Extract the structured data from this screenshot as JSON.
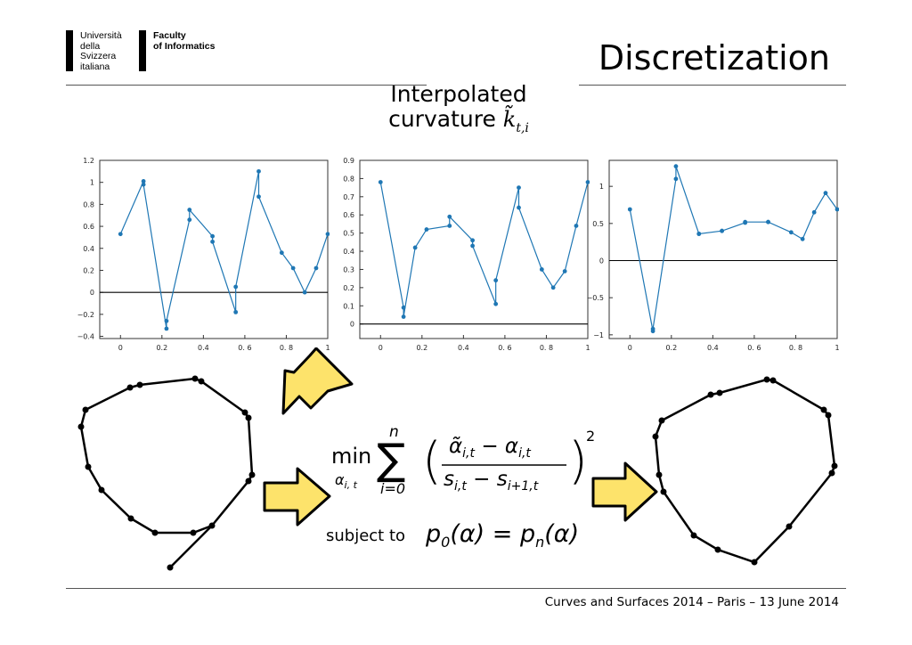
{
  "header": {
    "logo_university": "Università\ndella\nSvizzera\nitaliana",
    "logo_faculty": "Faculty\nof Informatics",
    "title": "Discretization"
  },
  "subtitle": {
    "line1": "Interpolated",
    "line2": "curvature"
  },
  "formula": {
    "min_label": "min",
    "constraint_prefix": "subject to",
    "exponent": "2",
    "upper": "n",
    "lower": "i=0"
  },
  "footer": "Curves and Surfaces 2014 – Paris – 13 June 2014",
  "colors": {
    "series": "#1f77b4",
    "arrow_fill": "#fde36b",
    "arrow_stroke": "#000000"
  },
  "chart_data": [
    {
      "type": "line",
      "x": [
        0.0,
        0.111,
        0.111,
        0.222,
        0.222,
        0.333,
        0.333,
        0.444,
        0.444,
        0.556,
        0.556,
        0.667,
        0.667,
        0.778,
        0.833,
        0.889,
        0.944,
        1.0
      ],
      "y": [
        0.53,
        1.01,
        0.98,
        -0.33,
        -0.26,
        0.66,
        0.75,
        0.51,
        0.46,
        -0.18,
        0.05,
        1.1,
        0.87,
        0.36,
        0.22,
        0.0,
        0.22,
        0.53
      ],
      "xlim": [
        -0.1,
        1.0
      ],
      "ylim": [
        -0.42,
        1.2
      ],
      "xticks": [
        "0",
        "0.2",
        "0.4",
        "0. 6",
        "0. 8",
        "1"
      ],
      "yticks": [
        "−0.4",
        "−0.2",
        "0",
        "0.2",
        "0.4",
        "0.6",
        "0.8",
        "1",
        "1.2"
      ],
      "zero_line": true
    },
    {
      "type": "line",
      "x": [
        0.0,
        0.111,
        0.111,
        0.167,
        0.222,
        0.333,
        0.333,
        0.444,
        0.444,
        0.556,
        0.556,
        0.667,
        0.667,
        0.778,
        0.833,
        0.889,
        0.944,
        1.0
      ],
      "y": [
        0.78,
        0.09,
        0.04,
        0.42,
        0.52,
        0.54,
        0.59,
        0.46,
        0.43,
        0.11,
        0.24,
        0.75,
        0.64,
        0.3,
        0.2,
        0.29,
        0.54,
        0.78
      ],
      "xlim": [
        -0.1,
        1.0
      ],
      "ylim": [
        -0.08,
        0.9
      ],
      "xticks": [
        "0",
        "0.2",
        "0.4",
        "0. 6",
        "0. 8",
        "1"
      ],
      "yticks": [
        "0",
        "0.1",
        "0.2",
        "0.3",
        "0.4",
        "0.5",
        "0.6",
        "0.7",
        "0.8",
        "0.9"
      ],
      "zero_line": true
    },
    {
      "type": "line",
      "x": [
        0.0,
        0.111,
        0.111,
        0.222,
        0.222,
        0.333,
        0.333,
        0.444,
        0.444,
        0.556,
        0.556,
        0.667,
        0.667,
        0.778,
        0.833,
        0.889,
        0.944,
        1.0
      ],
      "y": [
        0.69,
        -0.95,
        -0.92,
        1.1,
        1.27,
        0.36,
        0.36,
        0.4,
        0.4,
        0.51,
        0.52,
        0.52,
        0.52,
        0.38,
        0.29,
        0.65,
        0.91,
        0.69
      ],
      "xlim": [
        -0.1,
        1.0
      ],
      "ylim": [
        -1.05,
        1.35
      ],
      "xticks": [
        "0",
        "0.2",
        "0.4",
        "0. 6",
        "0. 8",
        "1"
      ],
      "yticks": [
        "−1",
        "−0.5",
        "0",
        "0.5",
        "1"
      ],
      "zero_line": true
    }
  ]
}
